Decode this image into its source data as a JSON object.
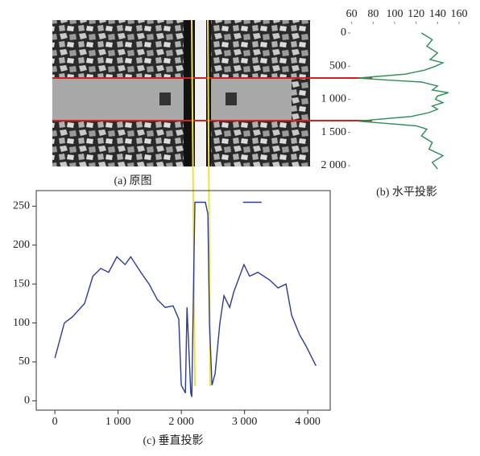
{
  "image": {
    "caption": "(a) 原图"
  },
  "chart_data": [
    {
      "type": "line",
      "orientation": "vertical",
      "caption": "(b) 水平投影",
      "color": "#2e8b57",
      "y": [
        0,
        100,
        200,
        300,
        400,
        450,
        500,
        560,
        620,
        660,
        680,
        700,
        740,
        800,
        860,
        900,
        950,
        1000,
        1050,
        1100,
        1150,
        1200,
        1260,
        1300,
        1330,
        1360,
        1400,
        1450,
        1550,
        1650,
        1750,
        1850,
        1950,
        2050
      ],
      "values": [
        125,
        135,
        130,
        140,
        133,
        145,
        138,
        128,
        110,
        80,
        66,
        85,
        125,
        140,
        135,
        150,
        140,
        138,
        145,
        135,
        140,
        132,
        115,
        85,
        66,
        90,
        120,
        130,
        125,
        135,
        132,
        145,
        135,
        140
      ],
      "xlim": [
        55,
        166
      ],
      "xticks": [
        60,
        80,
        100,
        120,
        140,
        160
      ],
      "ylim": [
        0,
        2000
      ],
      "y_inverted": true,
      "yticks": [
        0,
        500,
        {
          "value": 1000,
          "label": "1 000"
        },
        {
          "value": 1500,
          "label": "1 500"
        },
        {
          "value": 2000,
          "label": "2 000"
        }
      ]
    },
    {
      "type": "line",
      "caption": "(c) 垂直投影",
      "color": "#2b3a9a",
      "x": [
        0,
        150,
        280,
        470,
        600,
        725,
        850,
        980,
        1110,
        1200,
        1360,
        1490,
        1620,
        1745,
        1870,
        1960,
        2000,
        2065,
        2090,
        2150,
        2165,
        2215,
        2380,
        2420,
        2445,
        2485,
        2535,
        2610,
        2675,
        2765,
        2830,
        2990,
        3080,
        3210,
        3400,
        3530,
        3655,
        3745,
        3870,
        3975,
        4130,
        null,
        2975,
        3270
      ],
      "values": [
        55,
        100,
        108,
        125,
        160,
        170,
        165,
        185,
        175,
        185,
        165,
        150,
        130,
        120,
        122,
        105,
        20,
        10,
        120,
        10,
        5,
        255,
        255,
        240,
        100,
        20,
        35,
        100,
        135,
        120,
        140,
        175,
        160,
        165,
        155,
        145,
        150,
        110,
        85,
        70,
        45,
        null,
        255,
        255
      ],
      "xlim": [
        -295,
        4355
      ],
      "xticks": [
        0,
        {
          "value": 1000,
          "label": "1 000"
        },
        {
          "value": 2000,
          "label": "2 000"
        },
        {
          "value": 3000,
          "label": "3 000"
        },
        {
          "value": 4000,
          "label": "4 000"
        }
      ],
      "ylim": [
        -12,
        270
      ],
      "yticks": [
        0,
        50,
        100,
        150,
        200,
        250
      ]
    }
  ]
}
